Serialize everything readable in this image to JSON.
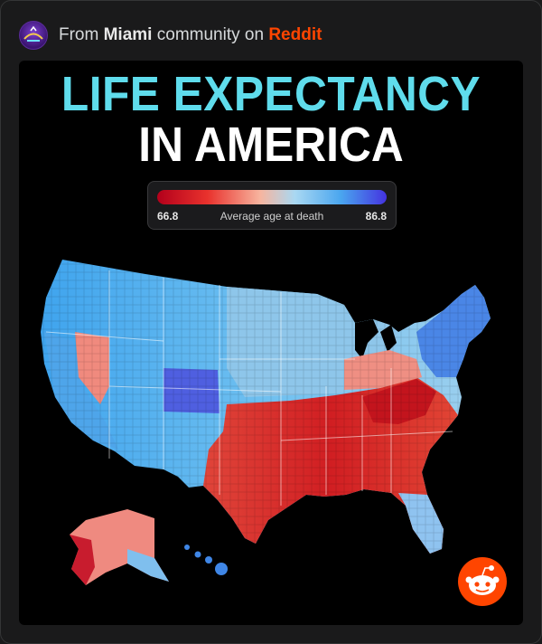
{
  "post": {
    "from_prefix": "From",
    "community": "Miami",
    "middle": "community on",
    "platform": "Reddit"
  },
  "infographic": {
    "title_line1": "LIFE EXPECTANCY",
    "title_line2": "IN AMERICA",
    "legend": {
      "min": "66.8",
      "label": "Average age at death",
      "max": "86.8",
      "min_color": "#b3001b",
      "mid_color": "#f7b59f",
      "max_color": "#4433e0"
    }
  },
  "icons": {
    "avatar": "miami-community-avatar-icon",
    "watermark": "reddit-snoo-icon"
  }
}
